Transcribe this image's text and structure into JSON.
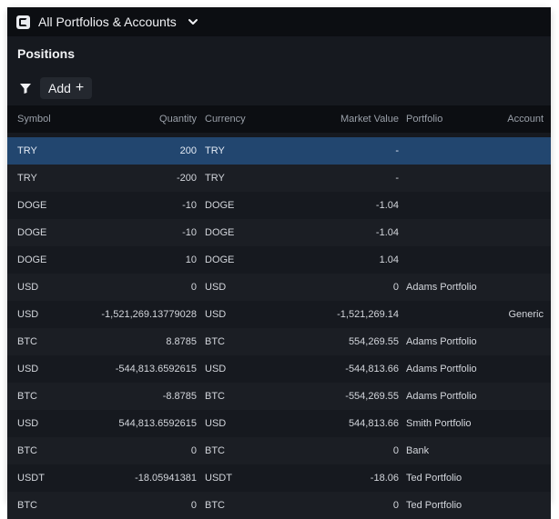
{
  "titlebar": {
    "title": "All Portfolios & Accounts",
    "logo_icon": "app-logo-icon",
    "chevron_icon": "chevron-down-icon"
  },
  "section": {
    "title": "Positions"
  },
  "toolbar": {
    "filter_icon": "filter-icon",
    "add_label": "Add",
    "add_plus": "+"
  },
  "table": {
    "columns": [
      "Symbol",
      "Quantity",
      "Currency",
      "Market Value",
      "Portfolio",
      "Account"
    ],
    "selected_row_index": 0,
    "rows": [
      {
        "symbol": "TRY",
        "quantity": "200",
        "currency": "TRY",
        "market_value": "-",
        "portfolio": "",
        "account": ""
      },
      {
        "symbol": "TRY",
        "quantity": "-200",
        "currency": "TRY",
        "market_value": "-",
        "portfolio": "",
        "account": ""
      },
      {
        "symbol": "DOGE",
        "quantity": "-10",
        "currency": "DOGE",
        "market_value": "-1.04",
        "portfolio": "",
        "account": ""
      },
      {
        "symbol": "DOGE",
        "quantity": "-10",
        "currency": "DOGE",
        "market_value": "-1.04",
        "portfolio": "",
        "account": ""
      },
      {
        "symbol": "DOGE",
        "quantity": "10",
        "currency": "DOGE",
        "market_value": "1.04",
        "portfolio": "",
        "account": ""
      },
      {
        "symbol": "USD",
        "quantity": "0",
        "currency": "USD",
        "market_value": "0",
        "portfolio": "Adams Portfolio",
        "account": ""
      },
      {
        "symbol": "USD",
        "quantity": "-1,521,269.13779028",
        "currency": "USD",
        "market_value": "-1,521,269.14",
        "portfolio": "",
        "account": "Generic"
      },
      {
        "symbol": "BTC",
        "quantity": "8.8785",
        "currency": "BTC",
        "market_value": "554,269.55",
        "portfolio": "Adams Portfolio",
        "account": ""
      },
      {
        "symbol": "USD",
        "quantity": "-544,813.6592615",
        "currency": "USD",
        "market_value": "-544,813.66",
        "portfolio": "Adams Portfolio",
        "account": ""
      },
      {
        "symbol": "BTC",
        "quantity": "-8.8785",
        "currency": "BTC",
        "market_value": "-554,269.55",
        "portfolio": "Adams Portfolio",
        "account": ""
      },
      {
        "symbol": "USD",
        "quantity": "544,813.6592615",
        "currency": "USD",
        "market_value": "544,813.66",
        "portfolio": "Smith Portfolio",
        "account": ""
      },
      {
        "symbol": "BTC",
        "quantity": "0",
        "currency": "BTC",
        "market_value": "0",
        "portfolio": "Bank",
        "account": ""
      },
      {
        "symbol": "USDT",
        "quantity": "-18.05941381",
        "currency": "USDT",
        "market_value": "-18.06",
        "portfolio": "Ted Portfolio",
        "account": ""
      },
      {
        "symbol": "BTC",
        "quantity": "0",
        "currency": "BTC",
        "market_value": "0",
        "portfolio": "Ted Portfolio",
        "account": ""
      }
    ]
  },
  "colors": {
    "background": "#16191f",
    "header_background": "#0c0e12",
    "selected_row": "#22466f",
    "text": "#d3d6dc",
    "muted_text": "#9aa0a9"
  }
}
